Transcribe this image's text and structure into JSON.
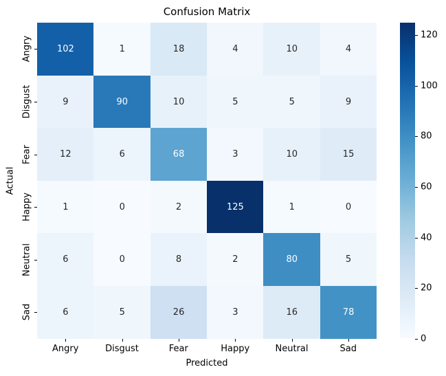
{
  "chart_data": {
    "type": "heatmap",
    "title": "Confusion Matrix",
    "xlabel": "Predicted",
    "ylabel": "Actual",
    "x_categories": [
      "Angry",
      "Disgust",
      "Fear",
      "Happy",
      "Neutral",
      "Sad"
    ],
    "y_categories": [
      "Angry",
      "Disgust",
      "Fear",
      "Happy",
      "Neutral",
      "Sad"
    ],
    "matrix": [
      [
        102,
        1,
        18,
        4,
        10,
        4
      ],
      [
        9,
        90,
        10,
        5,
        5,
        9
      ],
      [
        12,
        6,
        68,
        3,
        10,
        15
      ],
      [
        1,
        0,
        2,
        125,
        1,
        0
      ],
      [
        6,
        0,
        8,
        2,
        80,
        5
      ],
      [
        6,
        5,
        26,
        3,
        16,
        78
      ]
    ],
    "vmin": 0,
    "vmax": 125,
    "colorbar_ticks": [
      0,
      20,
      40,
      60,
      80,
      100,
      120
    ],
    "colormap": {
      "name": "Blues",
      "stops": [
        "#f7fbff",
        "#deebf7",
        "#c6dbef",
        "#9ecae1",
        "#6baed6",
        "#4292c6",
        "#2171b5",
        "#08519c",
        "#08306b"
      ]
    },
    "annot_color_dark": "#262626",
    "annot_color_light": "#ffffff",
    "legend_position": "right-colorbar",
    "grid": false
  }
}
